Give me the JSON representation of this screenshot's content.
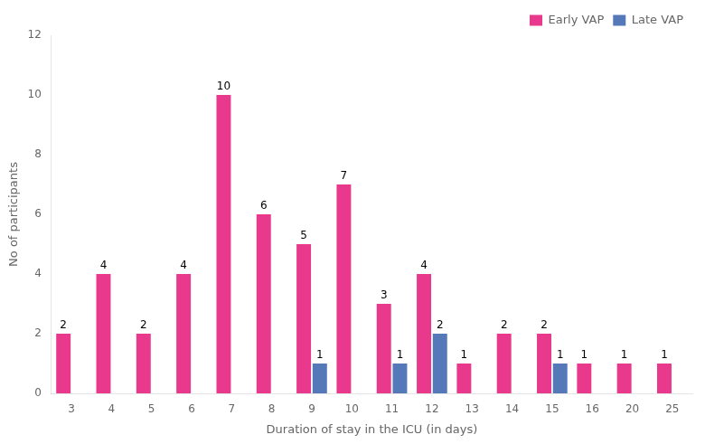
{
  "chart_data": {
    "type": "bar",
    "xlabel": "Duration of stay in the ICU (in days)",
    "ylabel": "No of participants",
    "categories": [
      "3",
      "4",
      "5",
      "6",
      "7",
      "8",
      "9",
      "10",
      "11",
      "12",
      "13",
      "14",
      "15",
      "16",
      "20",
      "25"
    ],
    "series": [
      {
        "name": "Early VAP",
        "color": "#E8398C",
        "values": [
          2,
          4,
          2,
          4,
          10,
          6,
          5,
          7,
          3,
          4,
          1,
          2,
          2,
          1,
          1,
          1
        ]
      },
      {
        "name": "Late VAP",
        "color": "#5578B8",
        "values": [
          0,
          0,
          0,
          0,
          0,
          0,
          1,
          0,
          1,
          2,
          0,
          0,
          1,
          0,
          0,
          0
        ],
        "value_labels": [
          null,
          null,
          null,
          null,
          null,
          null,
          "1",
          null,
          "1",
          "2",
          null,
          null,
          "1",
          null,
          null,
          null
        ]
      }
    ],
    "ylim": [
      0,
      12
    ],
    "yticks": [
      0,
      2,
      4,
      6,
      8,
      10,
      12
    ],
    "grid": false,
    "legend": "upper right",
    "data_labels": true
  }
}
